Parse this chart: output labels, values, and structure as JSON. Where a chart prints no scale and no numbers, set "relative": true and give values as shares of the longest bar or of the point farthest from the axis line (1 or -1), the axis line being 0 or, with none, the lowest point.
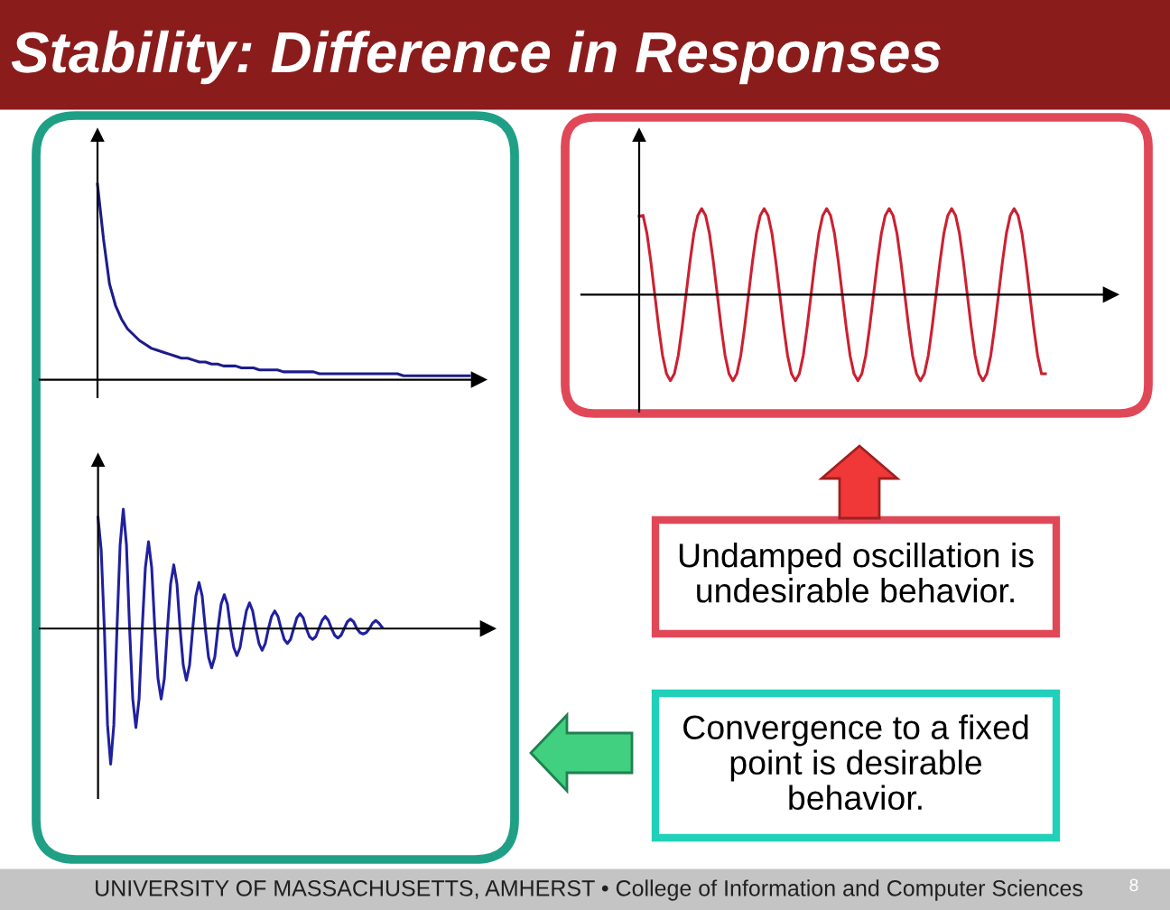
{
  "chart_data": [
    {
      "type": "line",
      "relative": true,
      "color": "#1c1c8a",
      "categories": [
        null,
        null,
        null,
        null,
        null,
        null,
        null,
        null,
        null,
        null,
        null,
        null,
        null,
        null,
        null,
        null,
        null,
        null,
        null,
        null,
        null,
        null,
        null,
        null,
        null,
        null,
        null,
        null,
        null,
        null,
        null,
        null,
        null,
        null,
        null,
        null,
        null,
        null,
        null,
        null,
        null,
        null,
        null,
        null,
        null,
        null,
        null,
        null,
        null,
        null,
        null,
        null,
        null,
        null,
        null,
        null,
        null,
        null,
        null,
        null,
        null,
        null,
        null
      ],
      "values": [
        1.0,
        0.72,
        0.49,
        0.38,
        0.31,
        0.26,
        0.23,
        0.2,
        0.18,
        0.16,
        0.15,
        0.14,
        0.13,
        0.12,
        0.11,
        0.11,
        0.1,
        0.09,
        0.09,
        0.08,
        0.08,
        0.07,
        0.07,
        0.07,
        0.06,
        0.06,
        0.06,
        0.05,
        0.05,
        0.05,
        0.05,
        0.04,
        0.04,
        0.04,
        0.04,
        0.04,
        0.04,
        0.03,
        0.03,
        0.03,
        0.03,
        0.03,
        0.03,
        0.03,
        0.03,
        0.03,
        0.03,
        0.03,
        0.03,
        0.03,
        0.03,
        0.02,
        0.02,
        0.02,
        0.02,
        0.02,
        0.02,
        0.02,
        0.02,
        0.02,
        0.02,
        0.02,
        0.02
      ]
    },
    {
      "type": "line",
      "relative": true,
      "color": "#cc2030",
      "categories": [
        null,
        null,
        null,
        null,
        null,
        null,
        null,
        null,
        null,
        null,
        null,
        null,
        null,
        null,
        null,
        null,
        null,
        null,
        null,
        null,
        null,
        null,
        null,
        null,
        null,
        null,
        null,
        null,
        null,
        null,
        null,
        null,
        null,
        null,
        null,
        null,
        null,
        null,
        null,
        null,
        null,
        null,
        null,
        null,
        null,
        null,
        null,
        null,
        null,
        null,
        null,
        null,
        null,
        null,
        null,
        null,
        null,
        null,
        null,
        null,
        null,
        null,
        null,
        null,
        null,
        null,
        null,
        null,
        null,
        null,
        null,
        null,
        null,
        null,
        null,
        null,
        null,
        null,
        null,
        null,
        null,
        null,
        null,
        null,
        null,
        null,
        null,
        null,
        null,
        null,
        null,
        null,
        null,
        null,
        null,
        null,
        null,
        null,
        null,
        null,
        null,
        null,
        null,
        null,
        null
      ],
      "values": [
        0.91,
        0.92,
        0.71,
        0.38,
        0,
        -0.38,
        -0.71,
        -0.92,
        -1,
        -0.92,
        -0.71,
        -0.38,
        0,
        0.38,
        0.71,
        0.92,
        1,
        0.92,
        0.71,
        0.38,
        0,
        -0.38,
        -0.71,
        -0.92,
        -1,
        -0.92,
        -0.71,
        -0.38,
        0,
        0.38,
        0.71,
        0.92,
        1,
        0.92,
        0.71,
        0.38,
        0,
        -0.38,
        -0.71,
        -0.92,
        -1,
        -0.92,
        -0.71,
        -0.38,
        0,
        0.38,
        0.71,
        0.92,
        1,
        0.92,
        0.71,
        0.38,
        0,
        -0.38,
        -0.71,
        -0.92,
        -1,
        -0.92,
        -0.71,
        -0.38,
        0,
        0.38,
        0.71,
        0.92,
        1,
        0.92,
        0.71,
        0.38,
        0,
        -0.38,
        -0.71,
        -0.92,
        -1,
        -0.92,
        -0.71,
        -0.38,
        0,
        0.38,
        0.71,
        0.92,
        1,
        0.92,
        0.71,
        0.38,
        0,
        -0.38,
        -0.71,
        -0.92,
        -1,
        -0.92,
        -0.71,
        -0.38,
        0,
        0.38,
        0.71,
        0.92,
        1,
        0.92,
        0.71,
        0.38,
        0,
        -0.38,
        -0.71,
        -0.92,
        -0.92
      ]
    },
    {
      "type": "line",
      "relative": true,
      "color": "#2020a0",
      "categories": [
        null,
        null,
        null,
        null,
        null,
        null,
        null,
        null,
        null,
        null,
        null,
        null,
        null,
        null,
        null,
        null,
        null,
        null,
        null,
        null,
        null,
        null,
        null,
        null,
        null,
        null,
        null,
        null,
        null,
        null,
        null,
        null,
        null,
        null,
        null,
        null,
        null,
        null,
        null,
        null,
        null,
        null,
        null,
        null,
        null,
        null,
        null,
        null,
        null,
        null,
        null,
        null,
        null,
        null,
        null,
        null,
        null,
        null,
        null,
        null,
        null,
        null,
        null,
        null,
        null,
        null,
        null,
        null,
        null,
        null,
        null,
        null,
        null,
        null,
        null,
        null,
        null,
        null,
        null,
        null,
        null,
        null,
        null,
        null,
        null,
        null,
        null,
        null,
        null,
        null,
        null
      ],
      "values": [
        0.82,
        0.58,
        0,
        -0.71,
        -1.0,
        -0.71,
        0,
        0.62,
        0.88,
        0.62,
        0,
        -0.52,
        -0.73,
        -0.52,
        0,
        0.45,
        0.64,
        0.45,
        0,
        -0.37,
        -0.52,
        -0.37,
        0,
        0.33,
        0.47,
        0.33,
        0,
        -0.27,
        -0.38,
        -0.27,
        0,
        0.24,
        0.34,
        0.24,
        0,
        -0.21,
        -0.29,
        -0.21,
        0,
        0.18,
        0.25,
        0.18,
        0,
        -0.14,
        -0.2,
        -0.14,
        0,
        0.13,
        0.19,
        0.13,
        0,
        -0.11,
        -0.16,
        -0.11,
        0,
        0.09,
        0.13,
        0.09,
        0,
        -0.08,
        -0.11,
        -0.08,
        0,
        0.08,
        0.11,
        0.08,
        0,
        -0.06,
        -0.08,
        -0.06,
        0,
        0.06,
        0.09,
        0.06,
        0,
        -0.05,
        -0.07,
        -0.05,
        0,
        0.05,
        0.07,
        0.05,
        0,
        -0.03,
        -0.04,
        -0.03,
        0,
        0.04,
        0.06,
        0.04,
        0.01
      ]
    },
    {
      "type": "other",
      "title": "Stability: Difference in Responses",
      "annotations": [
        "Undamped oscillation is undesirable behavior.",
        "Convergence to a fixed point is desirable behavior.",
        "UNIVERSITY OF MASSACHUSETTS, AMHERST • College of Information and Computer Sciences",
        "8"
      ]
    }
  ]
}
